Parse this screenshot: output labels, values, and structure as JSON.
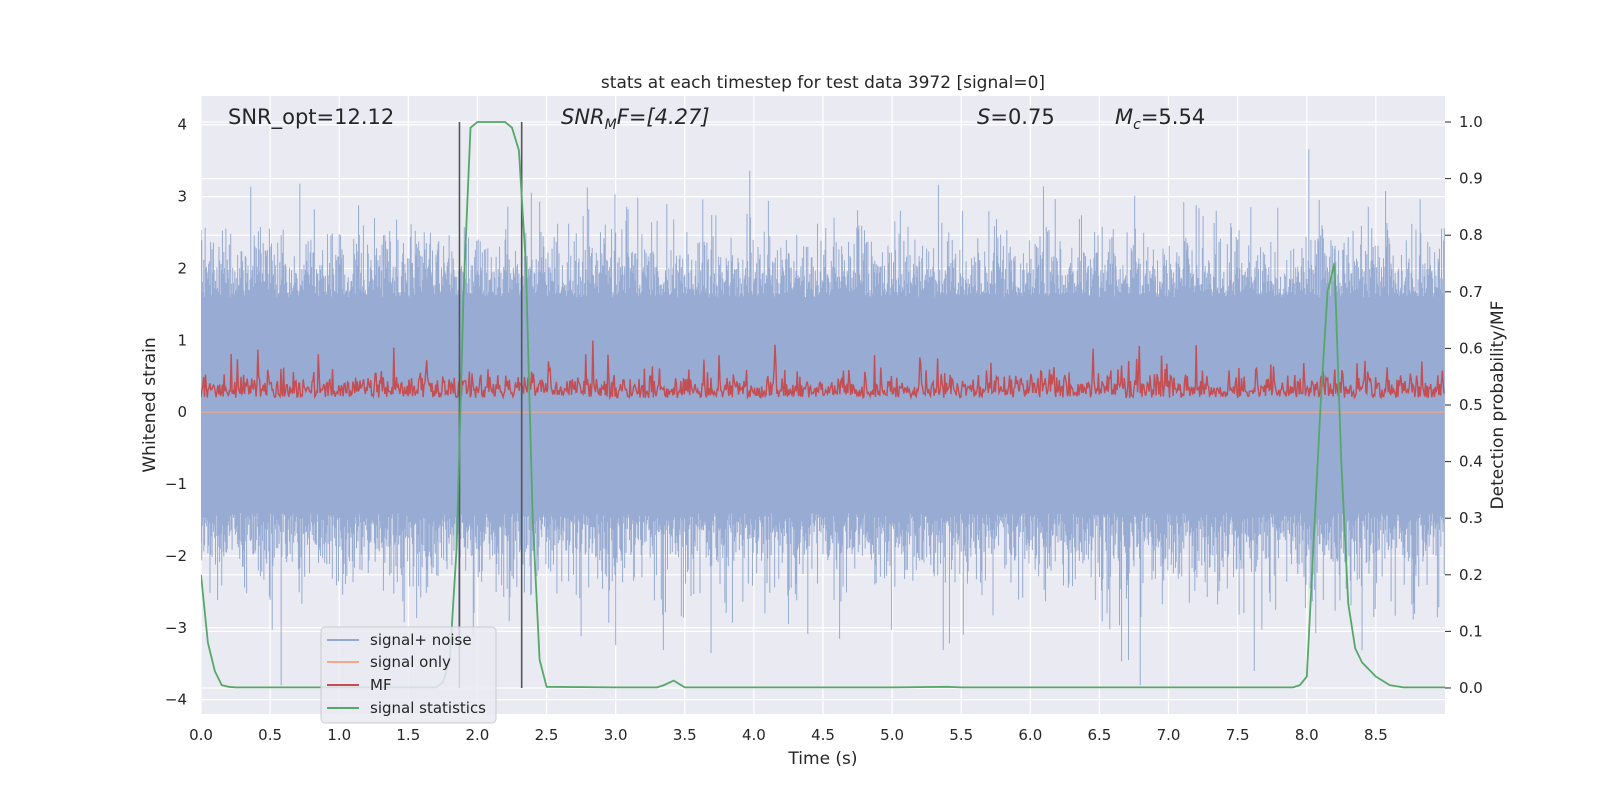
{
  "chart_data": {
    "type": "line",
    "title": "stats at each timestep for test data 3972 [signal=0]",
    "xlabel": "Time (s)",
    "ylabel_left": "Whitened strain",
    "ylabel_right": "Detection probability/MF",
    "xlim": [
      0,
      9.0
    ],
    "ylim_left": [
      -4.2,
      4.4
    ],
    "ylim_right": [
      -0.046,
      1.046
    ],
    "xticks": [
      "0.0",
      "0.5",
      "1.0",
      "1.5",
      "2.0",
      "2.5",
      "3.0",
      "3.5",
      "4.0",
      "4.5",
      "5.0",
      "5.5",
      "6.0",
      "6.5",
      "7.0",
      "7.5",
      "8.0",
      "8.5"
    ],
    "yticks_left": [
      "−4",
      "−3",
      "−2",
      "−1",
      "0",
      "1",
      "2",
      "3",
      "4"
    ],
    "yticks_right": [
      "0.0",
      "0.1",
      "0.2",
      "0.3",
      "0.4",
      "0.5",
      "0.6",
      "0.7",
      "0.8",
      "0.9",
      "1.0"
    ],
    "grid": true,
    "legend_position": "lower-left",
    "annotations": {
      "snr_opt": "SNR_opt=12.12",
      "snr_mf_main": "SNR",
      "snr_mf_sub": "M",
      "snr_mf_rest": "F=[4.27]",
      "spin_main": "S",
      "spin_rest": "=0.75",
      "mc_main": "M",
      "mc_sub": "c",
      "mc_rest": "=5.54"
    },
    "vertical_markers_s": [
      1.87,
      2.32
    ],
    "series": [
      {
        "name": "signal+ noise",
        "color": "#92a8d1",
        "axis": "left",
        "amplitude_range": [
          -3.8,
          3.7
        ],
        "typical_abs_range": [
          1.6,
          2.3
        ]
      },
      {
        "name": "signal only",
        "color": "#f2a98a",
        "axis": "left",
        "values_constant": 0
      },
      {
        "name": "MF",
        "color": "#c44e52",
        "axis": "left",
        "typical_range": [
          0.0,
          0.6
        ],
        "peak": 1.0
      },
      {
        "name": "signal statistics",
        "color": "#55a868",
        "axis": "right",
        "x": [
          0.0,
          0.05,
          0.1,
          0.15,
          0.2,
          0.25,
          0.3,
          0.5,
          1.0,
          1.5,
          1.7,
          1.75,
          1.8,
          1.85,
          1.9,
          1.95,
          2.0,
          2.1,
          2.2,
          2.25,
          2.3,
          2.35,
          2.4,
          2.45,
          2.5,
          3.0,
          3.3,
          3.35,
          3.42,
          3.5,
          4.0,
          5.0,
          5.4,
          5.5,
          6.0,
          7.0,
          7.9,
          7.95,
          8.0,
          8.1,
          8.15,
          8.2,
          8.25,
          8.3,
          8.35,
          8.4,
          8.5,
          8.6,
          8.7,
          9.0
        ],
        "values": [
          0.2,
          0.08,
          0.03,
          0.005,
          0.002,
          0.001,
          0.001,
          0.001,
          0.001,
          0.001,
          0.001,
          0.01,
          0.05,
          0.25,
          0.7,
          0.99,
          1.0,
          1.0,
          1.0,
          0.99,
          0.95,
          0.75,
          0.3,
          0.05,
          0.002,
          0.001,
          0.001,
          0.005,
          0.013,
          0.001,
          0.001,
          0.001,
          0.002,
          0.001,
          0.001,
          0.001,
          0.001,
          0.005,
          0.02,
          0.5,
          0.7,
          0.75,
          0.4,
          0.15,
          0.07,
          0.045,
          0.02,
          0.005,
          0.001,
          0.001
        ]
      }
    ]
  }
}
